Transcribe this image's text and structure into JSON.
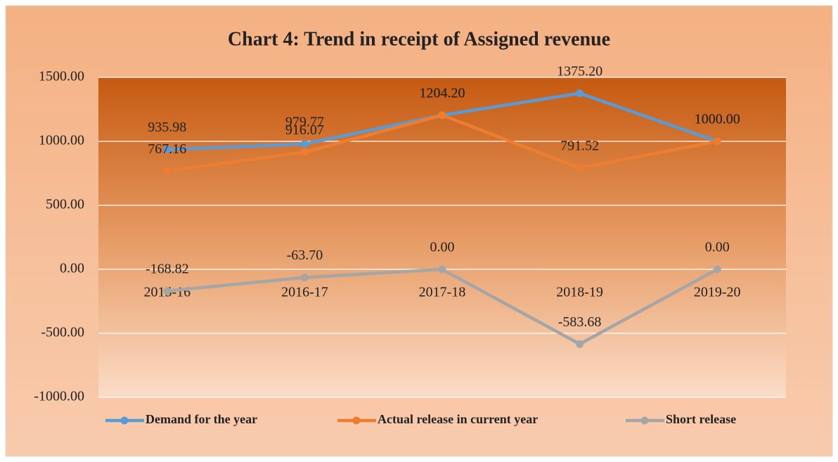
{
  "chart_data": {
    "type": "line",
    "title": "Chart 4: Trend in receipt of Assigned revenue",
    "categories": [
      "2015-16",
      "2016-17",
      "2017-18",
      "2018-19",
      "2019-20"
    ],
    "series": [
      {
        "name": "Demand for the year",
        "color": "#5b9bd5",
        "values": [
          935.98,
          979.77,
          1204.2,
          1375.2,
          1000.0
        ],
        "value_labels": [
          "935.98",
          "979.77",
          "1204.20",
          "1375.20",
          "1000.00"
        ]
      },
      {
        "name": "Actual release in current year",
        "color": "#ed7d31",
        "values": [
          767.16,
          916.07,
          1204.2,
          791.52,
          1000.0
        ],
        "value_labels": [
          "767.16",
          "916.07",
          "1204.20",
          "791.52",
          "1000.00"
        ]
      },
      {
        "name": "Short release",
        "color": "#a5a5a5",
        "values": [
          -168.82,
          -63.7,
          0.0,
          -583.68,
          0.0
        ],
        "value_labels": [
          "-168.82",
          "-63.70",
          "0.00",
          "-583.68",
          "0.00"
        ]
      }
    ],
    "ylim": [
      -1000,
      1500
    ],
    "yticks": [
      {
        "value": -1000,
        "label": "-1000.00"
      },
      {
        "value": -500,
        "label": "-500.00"
      },
      {
        "value": 0,
        "label": "0.00"
      },
      {
        "value": 500,
        "label": "500.00"
      },
      {
        "value": 1000,
        "label": "1000.00"
      },
      {
        "value": 1500,
        "label": "1500.00"
      }
    ],
    "grid": true,
    "legend": "bottom"
  }
}
